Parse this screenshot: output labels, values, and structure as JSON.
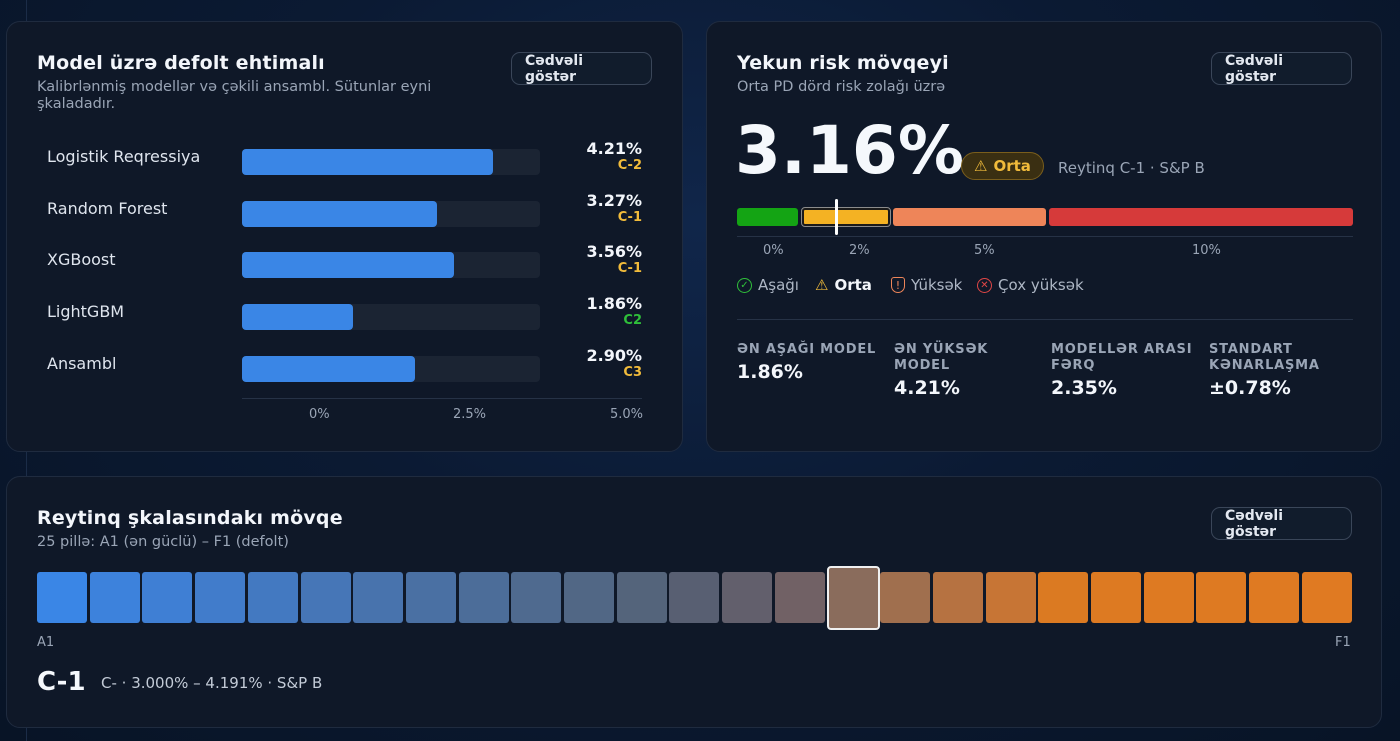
{
  "model_card": {
    "title": "Model üzrə defolt ehtimalı",
    "subtitle": "Kalibrlənmiş modellər və çəkili ansambl. Sütunlar eyni şkaladadır.",
    "table_button": "Cədvəli göstər",
    "axis_ticks": [
      "0%",
      "2.5%",
      "5.0%"
    ],
    "models": [
      {
        "name": "Logistik Reqressiya",
        "pd_label": "4.21%",
        "pd": 4.21,
        "grade": "C-2",
        "grade_color": "#f1bb3b"
      },
      {
        "name": "Random Forest",
        "pd_label": "3.27%",
        "pd": 3.27,
        "grade": "C-1",
        "grade_color": "#f1bb3b"
      },
      {
        "name": "XGBoost",
        "pd_label": "3.56%",
        "pd": 3.56,
        "grade": "C-1",
        "grade_color": "#f1bb3b"
      },
      {
        "name": "LightGBM",
        "pd_label": "1.86%",
        "pd": 1.86,
        "grade": "C2",
        "grade_color": "#2fbf3a"
      },
      {
        "name": "Ansambl",
        "pd_label": "2.90%",
        "pd": 2.9,
        "grade": "C3",
        "grade_color": "#f1bb3b"
      }
    ],
    "scale_max": 5.0
  },
  "risk_card": {
    "title": "Yekun risk mövqeyi",
    "subtitle": "Orta PD dörd risk zolağı üzrə",
    "table_button": "Cədvəli göstər",
    "pd_value": "3.16%",
    "badge": "Orta",
    "rating": "Reytinq C-1 · S&P B",
    "band_ticks": [
      "0%",
      "2%",
      "5%",
      "10%"
    ],
    "band_colors": [
      "#14a414",
      "#f4b223",
      "#ee8559",
      "#d63a3a"
    ],
    "legend": [
      {
        "label": "Aşağı",
        "icon": "check-circle-icon",
        "color": "#2fbf3a",
        "active": false
      },
      {
        "label": "Orta",
        "icon": "warning-icon",
        "color": "#f1bb3b",
        "active": true
      },
      {
        "label": "Yüksək",
        "icon": "shield-icon",
        "color": "#ee8559",
        "active": false
      },
      {
        "label": "Çox yüksək",
        "icon": "x-circle-icon",
        "color": "#e04646",
        "active": false
      }
    ],
    "stats": [
      {
        "label": "ƏN AŞAĞI MODEL",
        "value": "1.86%"
      },
      {
        "label": "ƏN YÜKSƏK MODEL",
        "value": "4.21%"
      },
      {
        "label": "MODELLƏR ARASI FƏRQ",
        "value": "2.35%"
      },
      {
        "label": "STANDART KƏNARLAŞMA",
        "value": "±0.78%"
      }
    ]
  },
  "scale_card": {
    "title": "Reytinq şkalasındakı mövqe",
    "subtitle": "25 pillə: A1 (ən güclü) – F1 (defolt)",
    "table_button": "Cədvəli göstər",
    "start_label": "A1",
    "end_label": "F1",
    "selected_index": 15,
    "grade": "C-1",
    "grade_desc": "C- · 3.000% – 4.191% · S&P B",
    "cell_colors": [
      "#3a86e6",
      "#3d82dc",
      "#3f7fd4",
      "#417ccb",
      "#4379c1",
      "#4676b7",
      "#4873ad",
      "#4a70a3",
      "#4c6d99",
      "#4f6a8f",
      "#516785",
      "#54647b",
      "#585f72",
      "#625f6c",
      "#716165",
      "#8a6c5c",
      "#a06f4e",
      "#b67241",
      "#c77535",
      "#db7a22",
      "#dd7a22",
      "#de7a22",
      "#de7a22",
      "#df7a22",
      "#e07a22"
    ]
  }
}
